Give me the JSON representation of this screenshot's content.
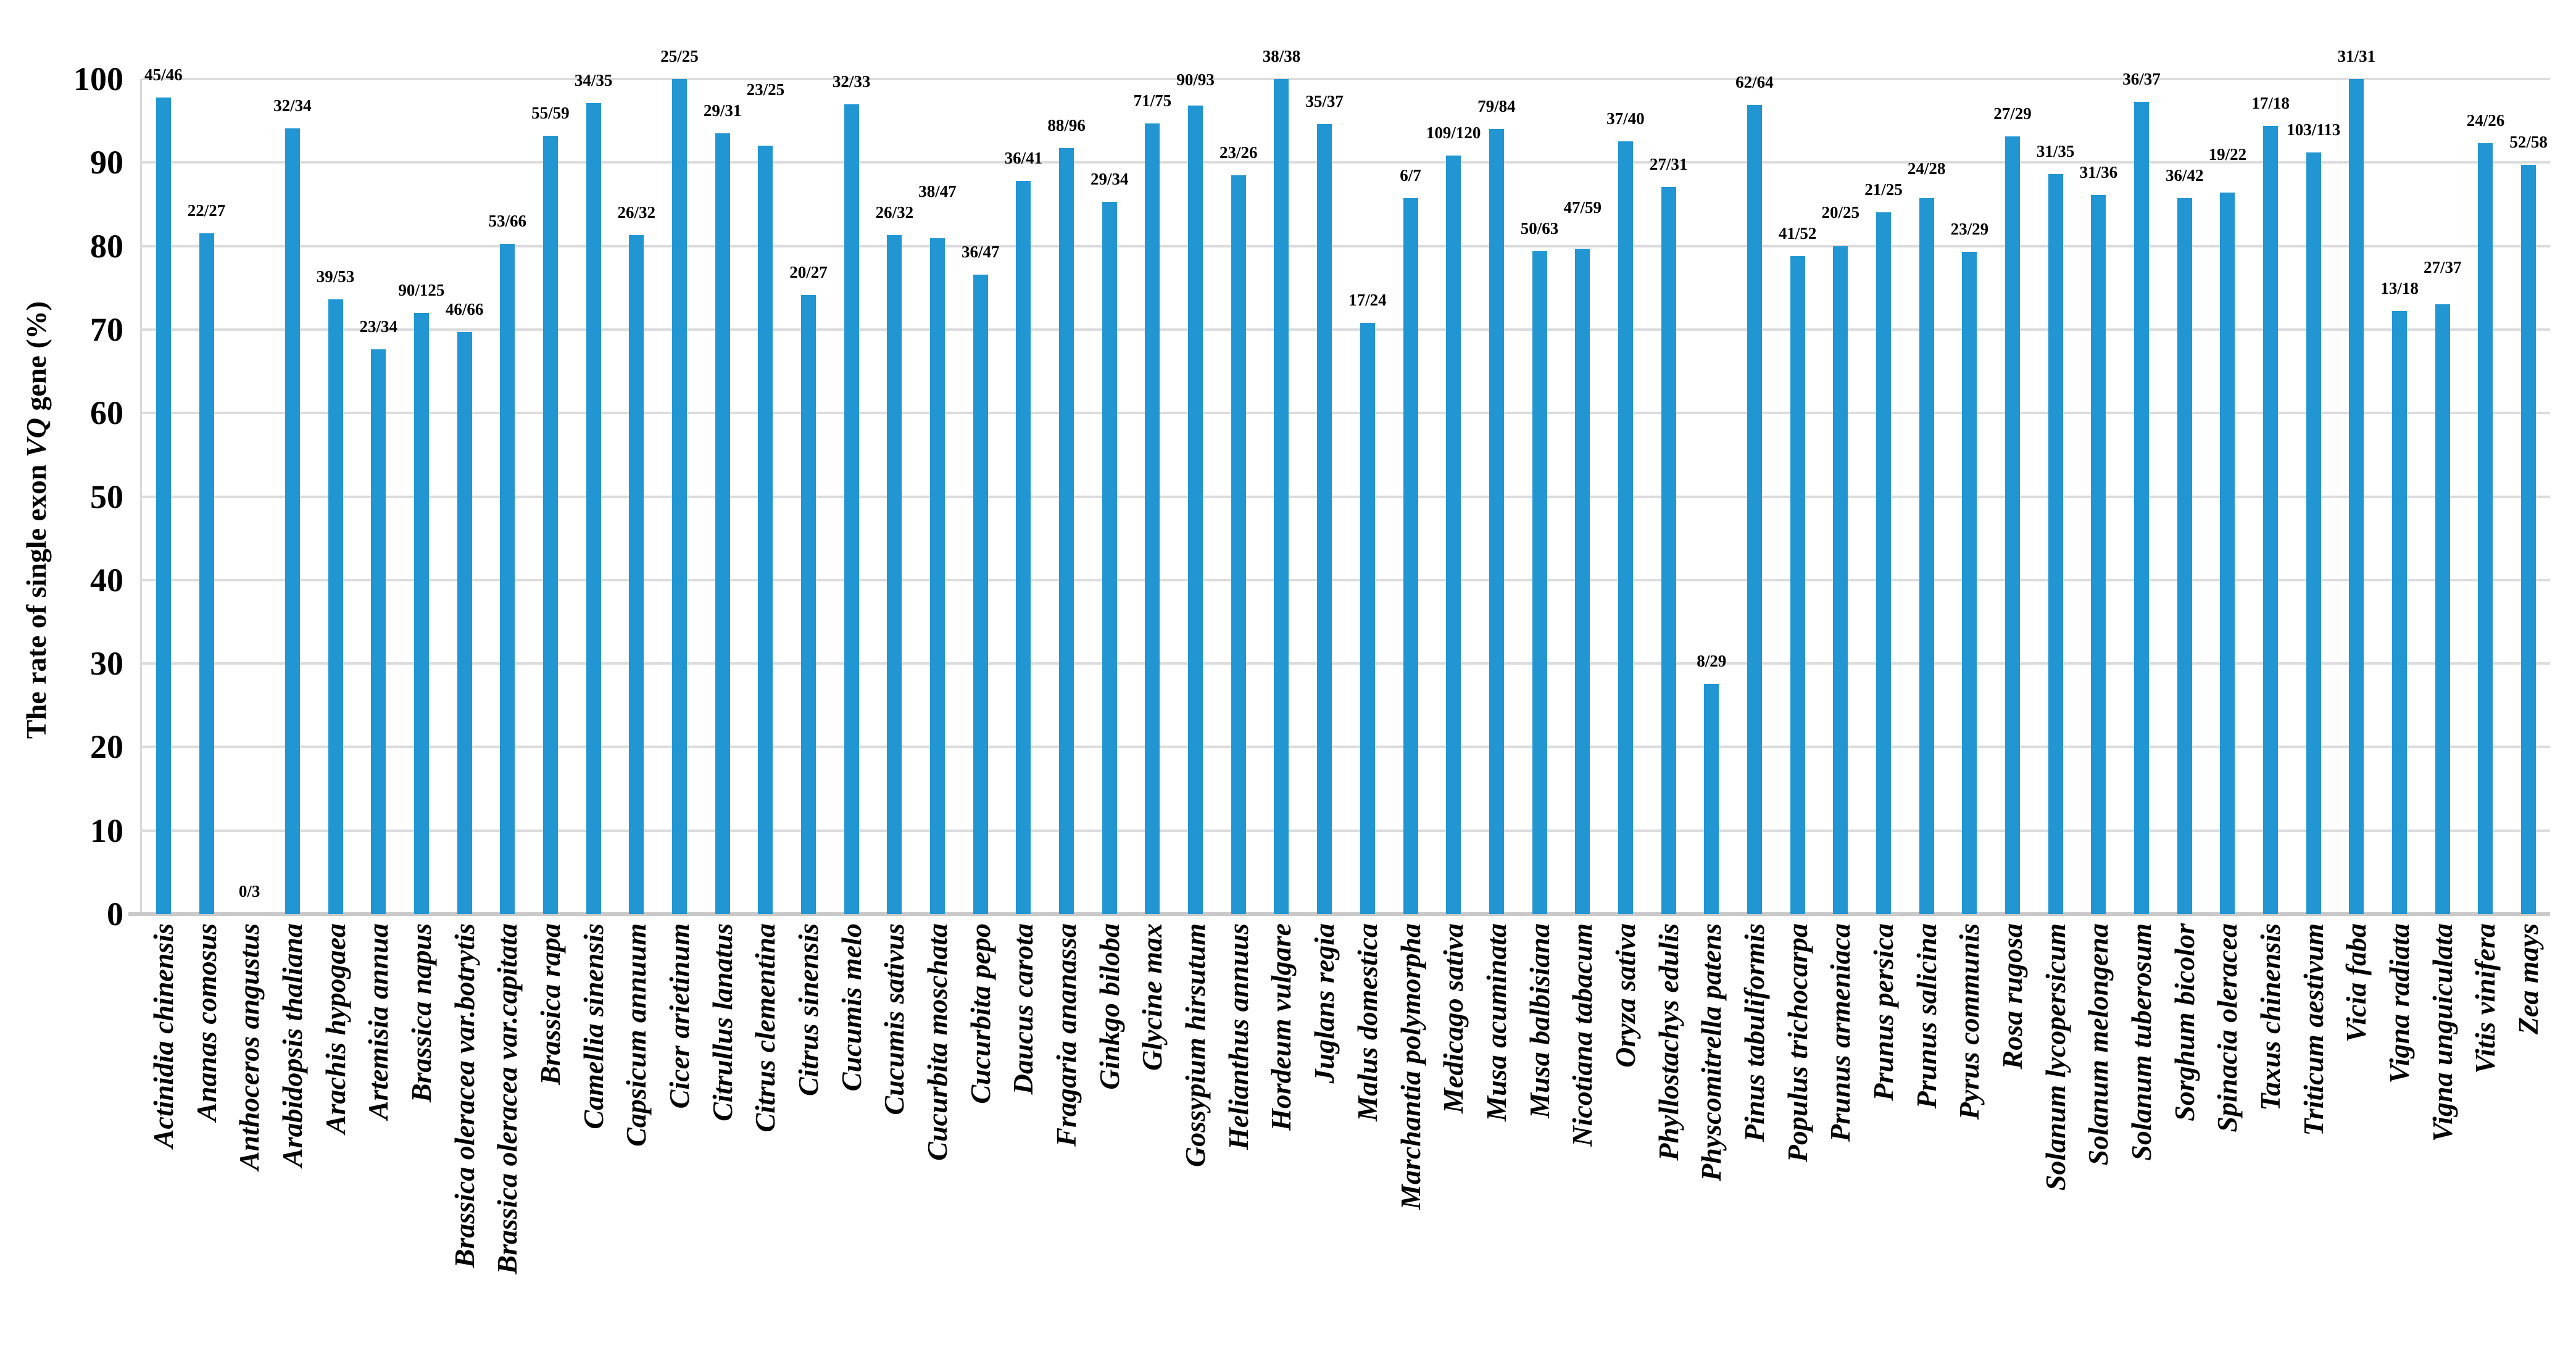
{
  "y_axis": {
    "title_prefix": "The rate of single exon ",
    "title_italic": "VQ",
    "title_suffix": " gene (%)",
    "ticks": [
      "0",
      "10",
      "20",
      "30",
      "40",
      "50",
      "60",
      "70",
      "80",
      "90",
      "100"
    ]
  },
  "chart_data": {
    "type": "bar",
    "title": "",
    "xlabel": "",
    "ylabel": "The rate of single exon VQ gene (%)",
    "ylim": [
      0,
      100
    ],
    "grid": "horizontal gridlines every 10",
    "legend": "none",
    "bar_color": "#2196d3",
    "gridline_color": "#dcdcdc",
    "categories": [
      "Actinidia chinensis",
      "Ananas comosus",
      "Anthoceros angustus",
      "Arabidopsis thaliana",
      "Arachis hypogaea",
      "Artemisia annua",
      "Brassica napus",
      "Brassica oleracea var.botrytis",
      "Brassica oleracea var.capitata",
      "Brassica rapa",
      "Camellia sinensis",
      "Capsicum annuum",
      "Cicer arietinum",
      "Citrullus lanatus",
      "Citrus clementina",
      "Citrus sinensis",
      "Cucumis melo",
      "Cucumis sativus",
      "Cucurbita moschata",
      "Cucurbita pepo",
      "Daucus carota",
      "Fragaria ananassa",
      "Ginkgo biloba",
      "Glycine max",
      "Gossypium hirsutum",
      "Helianthus annuus",
      "Hordeum vulgare",
      "Juglans regia",
      "Malus domestica",
      "Marchantia polymorpha",
      "Medicago sativa",
      "Musa acuminata",
      "Musa balbisiana",
      "Nicotiana tabacum",
      "Oryza sativa",
      "Phyllostachys edulis",
      "Physcomitrella patens",
      "Pinus tabuliformis",
      "Populus trichocarpa",
      "Prunus armeniaca",
      "Prunus persica",
      "Prunus salicina",
      "Pyrus communis",
      "Rosa rugosa",
      "Solanum lycopersicum",
      "Solanum melongena",
      "Solanum tuberosum",
      "Sorghum bicolor",
      "Spinacia oleracea",
      "Taxus chinensis",
      "Triticum aestivum",
      "Vicia faba",
      "Vigna radiata",
      "Vigna unguiculata",
      "Vitis vinifera",
      "Zea mays"
    ],
    "bar_labels": [
      "45/46",
      "22/27",
      "0/3",
      "32/34",
      "39/53",
      "23/34",
      "90/125",
      "46/66",
      "53/66",
      "55/59",
      "34/35",
      "26/32",
      "25/25",
      "29/31",
      "23/25",
      "20/27",
      "32/33",
      "26/32",
      "38/47",
      "36/47",
      "36/41",
      "88/96",
      "29/34",
      "71/75",
      "90/93",
      "23/26",
      "38/38",
      "35/37",
      "17/24",
      "6/7",
      "109/120",
      "79/84",
      "50/63",
      "47/59",
      "37/40",
      "27/31",
      "8/29",
      "62/64",
      "41/52",
      "20/25",
      "21/25",
      "24/28",
      "23/29",
      "27/29",
      "31/35",
      "31/36",
      "36/37",
      "36/42",
      "19/22",
      "17/18",
      "103/113",
      "31/31",
      "13/18",
      "27/37",
      "24/26",
      "52/58"
    ],
    "values": [
      97.8,
      81.5,
      0,
      94.1,
      73.6,
      67.6,
      72,
      69.7,
      80.3,
      93.2,
      97.1,
      81.3,
      100,
      93.5,
      92,
      74.1,
      97,
      81.3,
      80.9,
      76.6,
      87.8,
      91.7,
      85.3,
      94.7,
      96.8,
      88.5,
      100,
      94.6,
      70.8,
      85.7,
      90.8,
      94,
      79.4,
      79.7,
      92.5,
      87.1,
      27.6,
      96.9,
      78.8,
      80,
      84,
      85.7,
      79.3,
      93.1,
      88.6,
      86.1,
      97.3,
      85.7,
      86.4,
      94.4,
      91.2,
      100,
      72.2,
      73,
      92.3,
      89.7
    ]
  }
}
